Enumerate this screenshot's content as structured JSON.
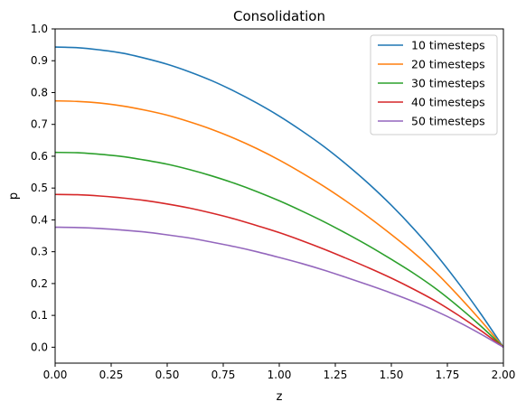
{
  "chart_data": {
    "type": "line",
    "title": "Consolidation",
    "xlabel": "z",
    "ylabel": "p",
    "xlim": [
      0,
      2
    ],
    "ylim": [
      -0.05,
      1.0
    ],
    "xticks": [
      "0.00",
      "0.25",
      "0.50",
      "0.75",
      "1.00",
      "1.25",
      "1.50",
      "1.75",
      "2.00"
    ],
    "yticks": [
      "0.0",
      "0.1",
      "0.2",
      "0.3",
      "0.4",
      "0.5",
      "0.6",
      "0.7",
      "0.8",
      "0.9",
      "1.0"
    ],
    "grid": false,
    "legend_position": "top-right",
    "x": [
      0,
      0.1,
      0.2,
      0.3,
      0.4,
      0.5,
      0.6,
      0.7,
      0.8,
      0.9,
      1.0,
      1.1,
      1.2,
      1.3,
      1.4,
      1.5,
      1.6,
      1.7,
      1.8,
      1.9,
      2.0
    ],
    "series": [
      {
        "name": "10 timesteps",
        "color": "#1f77b4",
        "values": [
          0.943,
          0.941,
          0.934,
          0.924,
          0.908,
          0.889,
          0.865,
          0.837,
          0.804,
          0.767,
          0.726,
          0.68,
          0.63,
          0.574,
          0.513,
          0.446,
          0.372,
          0.291,
          0.201,
          0.104,
          0.0
        ]
      },
      {
        "name": "20 timesteps",
        "color": "#ff7f0e",
        "values": [
          0.774,
          0.772,
          0.767,
          0.758,
          0.745,
          0.729,
          0.708,
          0.684,
          0.656,
          0.624,
          0.588,
          0.548,
          0.505,
          0.458,
          0.408,
          0.354,
          0.297,
          0.234,
          0.161,
          0.083,
          0.0
        ]
      },
      {
        "name": "30 timesteps",
        "color": "#2ca02c",
        "values": [
          0.612,
          0.611,
          0.606,
          0.599,
          0.588,
          0.575,
          0.558,
          0.538,
          0.515,
          0.489,
          0.46,
          0.428,
          0.394,
          0.357,
          0.318,
          0.276,
          0.232,
          0.183,
          0.127,
          0.066,
          0.0
        ]
      },
      {
        "name": "40 timesteps",
        "color": "#d62728",
        "values": [
          0.48,
          0.479,
          0.475,
          0.469,
          0.461,
          0.45,
          0.437,
          0.421,
          0.403,
          0.382,
          0.36,
          0.335,
          0.308,
          0.279,
          0.249,
          0.217,
          0.182,
          0.144,
          0.1,
          0.052,
          0.0
        ]
      },
      {
        "name": "50 timesteps",
        "color": "#9467bd",
        "values": [
          0.377,
          0.376,
          0.373,
          0.368,
          0.362,
          0.353,
          0.343,
          0.33,
          0.316,
          0.3,
          0.282,
          0.263,
          0.242,
          0.219,
          0.195,
          0.17,
          0.143,
          0.113,
          0.079,
          0.041,
          0.0
        ]
      }
    ]
  }
}
